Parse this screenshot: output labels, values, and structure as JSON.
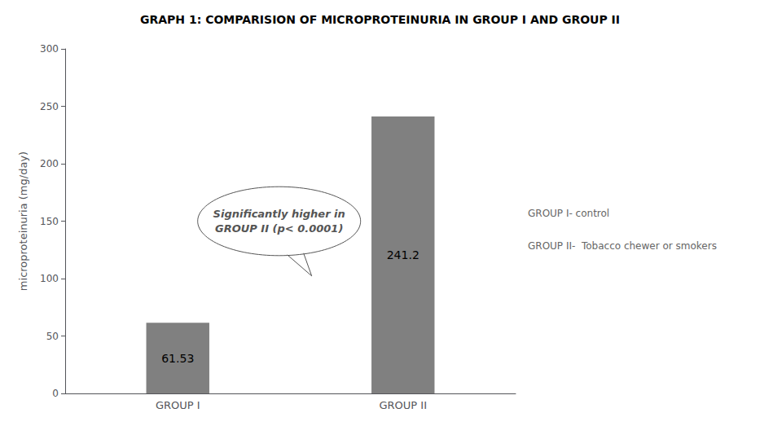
{
  "chart_data": {
    "type": "bar",
    "title": "GRAPH 1: COMPARISION OF MICROPROTEINURIA IN GROUP I AND GROUP II",
    "categories": [
      "GROUP I",
      "GROUP II"
    ],
    "values": [
      61.53,
      241.2
    ],
    "color": "#808080",
    "ylabel": "microproteinuria (mg/day)",
    "ylim": [
      0,
      300
    ],
    "yticks": [
      0,
      50,
      100,
      150,
      200,
      250,
      300
    ],
    "grid": false,
    "data_labels": true,
    "annotations": [
      "Significantly higher in",
      "GROUP II (p< 0.0001)",
      "GROUP I- control",
      "GROUP II-  Tobacco chewer or smokers"
    ]
  }
}
